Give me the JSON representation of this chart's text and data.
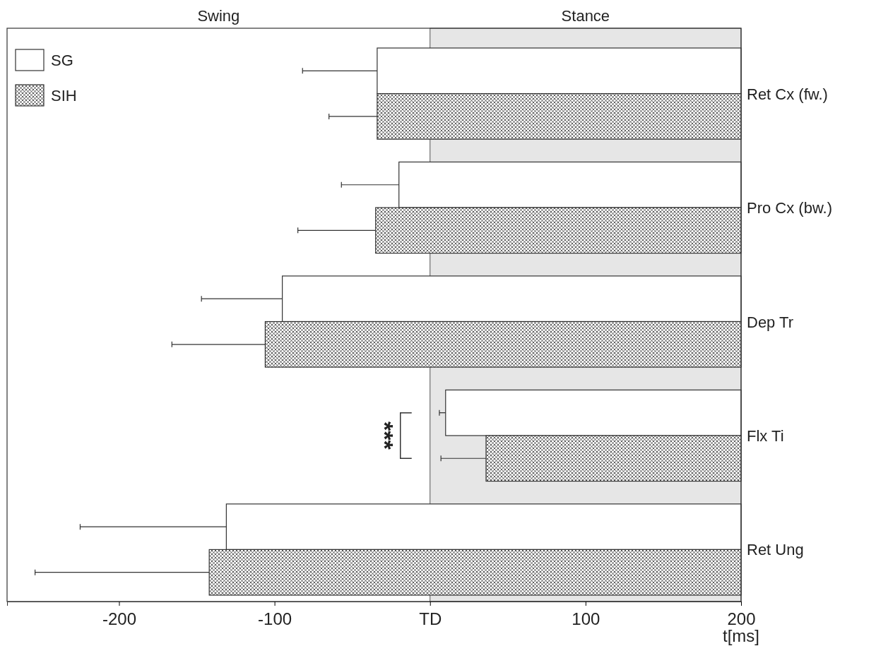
{
  "chart_data": {
    "type": "bar",
    "orientation": "horizontal",
    "categories": [
      "Ret Cx (fw.)",
      "Pro Cx (bw.)",
      "Dep Tr",
      "Flx Ti",
      "Ret Ung"
    ],
    "series": [
      {
        "name": "SG",
        "color": "#ffffff",
        "base": [
          -34,
          -20,
          -95,
          10,
          -131
        ],
        "values": [
          234,
          220,
          295,
          190,
          331
        ],
        "errors": [
          [
            -82,
            -34
          ],
          [
            -57,
            -20
          ],
          [
            -147,
            -95
          ],
          [
            6,
            10
          ],
          [
            -225,
            -131
          ]
        ]
      },
      {
        "name": "SIH",
        "color": "#333333",
        "base": [
          -34,
          -35,
          -106,
          36,
          -142
        ],
        "values": [
          234,
          235,
          306,
          164,
          342
        ],
        "errors": [
          [
            -65,
            -34
          ],
          [
            -85,
            -35
          ],
          [
            -166,
            -106
          ],
          [
            7,
            36
          ],
          [
            -254,
            -142
          ]
        ]
      }
    ],
    "xlim": [
      -272,
      200
    ],
    "xticks": [
      -200,
      -100,
      {
        "value": 0,
        "label": "TD"
      },
      100,
      200
    ],
    "xlabel": "t[ms]",
    "bands": [
      {
        "axis": "x",
        "from": 0,
        "to": 200,
        "label": "Stance",
        "color": "#e6e6e6"
      }
    ],
    "annotations": [
      "Swing",
      "***"
    ],
    "legend": "top left",
    "grid": false
  }
}
